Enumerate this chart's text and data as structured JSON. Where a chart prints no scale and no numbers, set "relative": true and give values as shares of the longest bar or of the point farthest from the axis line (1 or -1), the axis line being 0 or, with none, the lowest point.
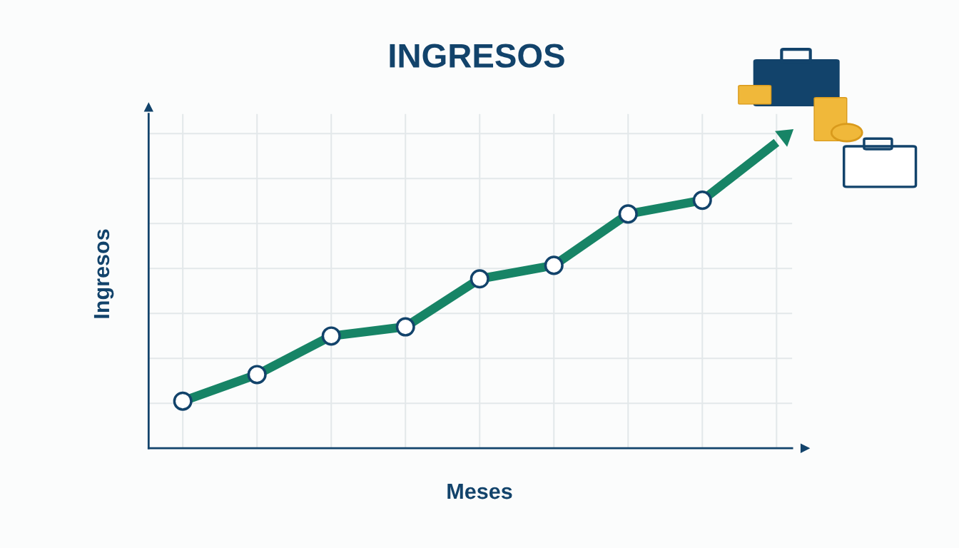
{
  "chart_data": {
    "type": "line",
    "title": "INGRESOS",
    "xlabel": "Meses",
    "ylabel": "Ingresos",
    "relative": true,
    "grid": true,
    "marker": "circle",
    "line_style": "solid",
    "categories": [
      null,
      null,
      null,
      null,
      null,
      null,
      null,
      null,
      null
    ],
    "series": [
      {
        "color": "#178466",
        "values": [
          0.154,
          0.241,
          0.367,
          0.397,
          0.554,
          0.598,
          0.766,
          0.811,
          1
        ]
      }
    ]
  }
}
